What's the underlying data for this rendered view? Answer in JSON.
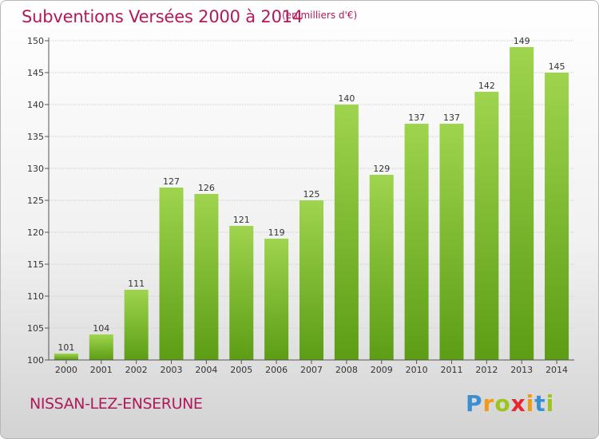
{
  "title": "Subventions Versées 2000 à 2014",
  "unit_note": "(en milliers d'€)",
  "place_name": "NISSAN-LEZ-ENSERUNE",
  "logo": {
    "letters": [
      "P",
      "r",
      "o",
      "x",
      "i",
      "t",
      "i"
    ],
    "colors": [
      "#3a8fd1",
      "#f09a17",
      "#9bc41c",
      "#e8262e",
      "#f09a17",
      "#3a8fd1",
      "#9bc41c"
    ]
  },
  "colors": {
    "bar_top": "#9fd44e",
    "bar_bottom": "#5c9d15",
    "axis": "#555555",
    "grid": "#cfcfcf",
    "text": "#333333",
    "accent": "#b0195b"
  },
  "chart_data": {
    "type": "bar",
    "categories": [
      "2000",
      "2001",
      "2002",
      "2003",
      "2004",
      "2005",
      "2006",
      "2007",
      "2008",
      "2009",
      "2010",
      "2011",
      "2012",
      "2013",
      "2014"
    ],
    "values": [
      101,
      104,
      111,
      127,
      126,
      121,
      119,
      125,
      140,
      129,
      137,
      137,
      142,
      149,
      145
    ],
    "data_labels": [
      "101",
      "104",
      "111",
      "127",
      "126",
      "121",
      "119",
      "125",
      "140",
      "129",
      "137",
      "137",
      "142",
      "149",
      "145"
    ],
    "yticks": [
      100,
      105,
      110,
      115,
      120,
      125,
      130,
      135,
      140,
      145,
      150
    ],
    "ylim": [
      100,
      150
    ],
    "grid": true
  }
}
